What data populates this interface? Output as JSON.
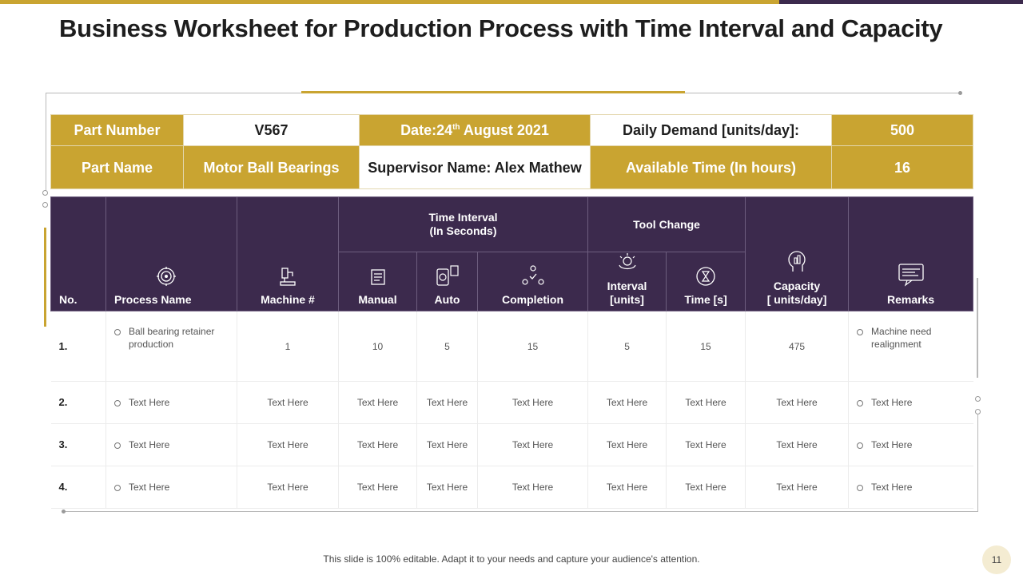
{
  "title": "Business Worksheet for Production Process with Time Interval and Capacity",
  "colors": {
    "gold": "#c9a431",
    "purple": "#3c2a4d"
  },
  "info": {
    "part_number_label": "Part Number",
    "part_number_value": "V567",
    "date_prefix": "Date:24",
    "date_sup": "th",
    "date_suffix": " August 2021",
    "daily_demand_label": "Daily Demand [units/day]:",
    "daily_demand_value": "500",
    "part_name_label": "Part Name",
    "part_name_value": "Motor Ball Bearings",
    "supervisor": "Supervisor Name: Alex Mathew",
    "available_time_label": "Available Time (In hours)",
    "available_time_value": "16"
  },
  "headers": {
    "no": "No.",
    "process_name": "Process Name",
    "machine": "Machine #",
    "time_interval_line1": "Time Interval",
    "time_interval_line2": "(In Seconds)",
    "manual": "Manual",
    "auto": "Auto",
    "completion": "Completion",
    "tool_change": "Tool Change",
    "interval_line1": "Interval",
    "interval_line2": "[units]",
    "time_s": "Time [s]",
    "capacity_line1": "Capacity",
    "capacity_line2": "[ units/day]",
    "remarks": "Remarks"
  },
  "header_icons": [
    "gear-icon",
    "machine-icon",
    "manual-icon",
    "auto-icon",
    "completion-icon",
    "interval-icon",
    "hourglass-icon",
    "capacity-icon",
    "remarks-icon"
  ],
  "rows": [
    {
      "no": "1.",
      "process": "Ball bearing retainer production",
      "machine": "1",
      "manual": "10",
      "auto": "5",
      "completion": "15",
      "interval": "5",
      "time": "15",
      "capacity": "475",
      "remarks": "Machine need realignment"
    },
    {
      "no": "2.",
      "process": "Text Here",
      "machine": "Text Here",
      "manual": "Text Here",
      "auto": "Text Here",
      "completion": "Text Here",
      "interval": "Text Here",
      "time": "Text Here",
      "capacity": "Text Here",
      "remarks": "Text Here"
    },
    {
      "no": "3.",
      "process": "Text Here",
      "machine": "Text Here",
      "manual": "Text Here",
      "auto": "Text Here",
      "completion": "Text Here",
      "interval": "Text Here",
      "time": "Text Here",
      "capacity": "Text Here",
      "remarks": "Text Here"
    },
    {
      "no": "4.",
      "process": "Text Here",
      "machine": "Text Here",
      "manual": "Text Here",
      "auto": "Text Here",
      "completion": "Text Here",
      "interval": "Text Here",
      "time": "Text Here",
      "capacity": "Text Here",
      "remarks": "Text Here"
    }
  ],
  "footer": "This slide is 100% editable. Adapt it to your needs and capture your audience's attention.",
  "page_number": "11"
}
